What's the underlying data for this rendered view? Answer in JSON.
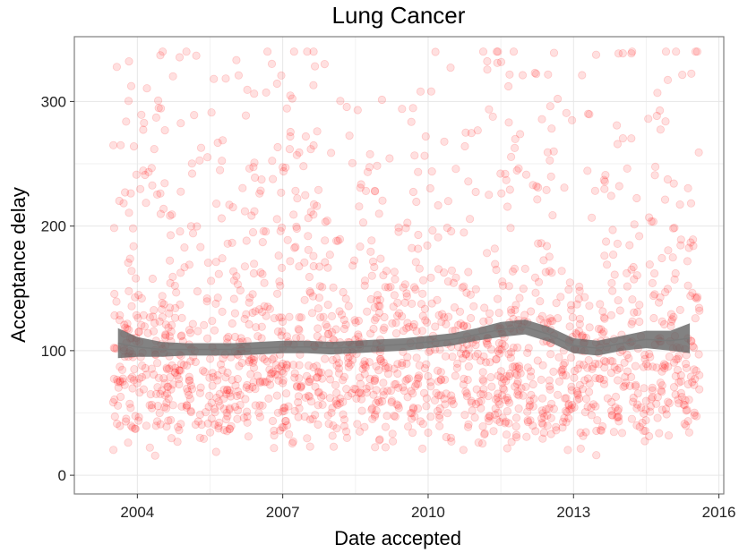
{
  "chart_data": {
    "type": "scatter",
    "title": "Lung Cancer",
    "xlabel": "Date accepted",
    "ylabel": "Acceptance delay",
    "xlim": [
      2002.7,
      2016.1
    ],
    "ylim": [
      -15,
      352
    ],
    "x_ticks": [
      2004,
      2007,
      2010,
      2013,
      2016
    ],
    "x_tick_labels": [
      "2004",
      "2007",
      "2010",
      "2013",
      "2016"
    ],
    "y_ticks": [
      0,
      100,
      200,
      300
    ],
    "y_tick_labels": [
      "0",
      "100",
      "200",
      "300"
    ],
    "grid": true,
    "legend": "none",
    "point_color": "#ff0000",
    "point_opacity": 0.12,
    "x_range_of_points": [
      2003.5,
      2015.6
    ],
    "point_count_approx": 1800,
    "smooth_fit": {
      "color": "#7a7a7a",
      "x": [
        2003.6,
        2004.0,
        2004.5,
        2005.0,
        2005.5,
        2006.0,
        2006.5,
        2007.0,
        2007.5,
        2008.0,
        2008.5,
        2009.0,
        2009.5,
        2010.0,
        2010.5,
        2011.0,
        2011.5,
        2012.0,
        2012.5,
        2013.0,
        2013.5,
        2014.0,
        2014.5,
        2015.0,
        2015.4
      ],
      "y": [
        106,
        103,
        101,
        101,
        101,
        101,
        102,
        103,
        103,
        102,
        103,
        104,
        105,
        107,
        109,
        113,
        117,
        119,
        113,
        104,
        102,
        106,
        109,
        108,
        110
      ],
      "band_halfwidth": [
        12,
        8,
        6,
        5,
        5,
        5,
        5,
        5,
        5,
        5,
        5,
        5,
        5,
        5,
        5,
        5,
        6,
        6,
        6,
        6,
        6,
        6,
        7,
        8,
        12
      ]
    }
  }
}
